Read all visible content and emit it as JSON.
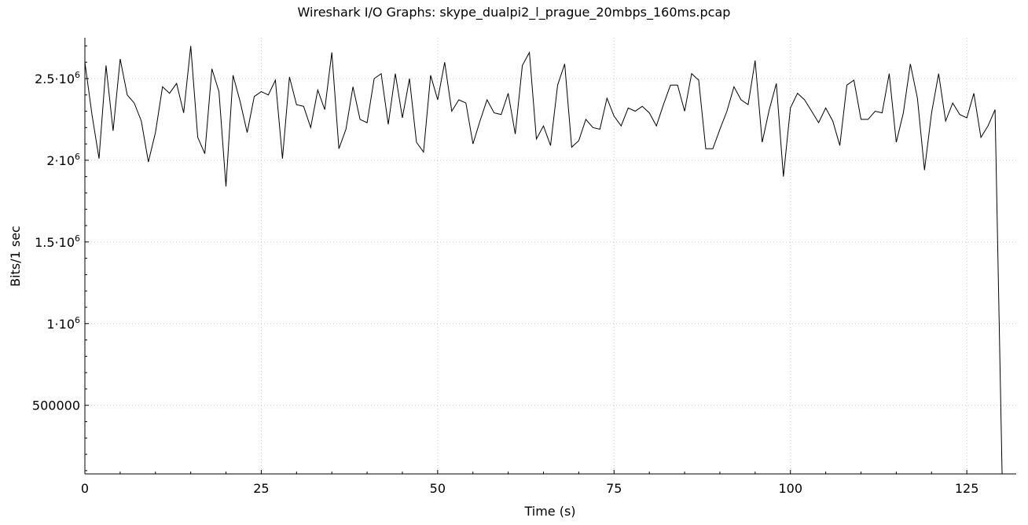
{
  "chart_data": {
    "type": "line",
    "title": "Wireshark I/O Graphs: skype_dualpi2_l_prague_20mbps_160ms.pcap",
    "xlabel": "Time (s)",
    "ylabel": "Bits/1 sec",
    "xlim": [
      0,
      132
    ],
    "ylim": [
      80000,
      2750000
    ],
    "x_ticks": [
      0,
      25,
      50,
      75,
      100,
      125
    ],
    "x_tick_labels": [
      "0",
      "25",
      "50",
      "75",
      "100",
      "125"
    ],
    "y_ticks": [
      500000,
      1000000,
      1500000,
      2000000,
      2500000
    ],
    "y_tick_labels": [
      {
        "base": "500000",
        "exp": ""
      },
      {
        "base": "1·10",
        "exp": "6"
      },
      {
        "base": "1.5·10",
        "exp": "6"
      },
      {
        "base": "2·10",
        "exp": "6"
      },
      {
        "base": "2.5·10",
        "exp": "6"
      }
    ],
    "grid": true,
    "line_color": "#000000",
    "x": [
      0,
      1,
      2,
      3,
      4,
      5,
      6,
      7,
      8,
      9,
      10,
      11,
      12,
      13,
      14,
      15,
      16,
      17,
      18,
      19,
      20,
      21,
      22,
      23,
      24,
      25,
      26,
      27,
      28,
      29,
      30,
      31,
      32,
      33,
      34,
      35,
      36,
      37,
      38,
      39,
      40,
      41,
      42,
      43,
      44,
      45,
      46,
      47,
      48,
      49,
      50,
      51,
      52,
      53,
      54,
      55,
      56,
      57,
      58,
      59,
      60,
      61,
      62,
      63,
      64,
      65,
      66,
      67,
      68,
      69,
      70,
      71,
      72,
      73,
      74,
      75,
      76,
      77,
      78,
      79,
      80,
      81,
      82,
      83,
      84,
      85,
      86,
      87,
      88,
      89,
      90,
      91,
      92,
      93,
      94,
      95,
      96,
      97,
      98,
      99,
      100,
      101,
      102,
      103,
      104,
      105,
      106,
      107,
      108,
      109,
      110,
      111,
      112,
      113,
      114,
      115,
      116,
      117,
      118,
      119,
      120,
      121,
      122,
      123,
      124,
      125,
      126,
      127,
      128,
      129,
      130
    ],
    "values": [
      2600000,
      2280000,
      2010000,
      2580000,
      2180000,
      2620000,
      2400000,
      2350000,
      2240000,
      1990000,
      2170000,
      2450000,
      2410000,
      2470000,
      2290000,
      2700000,
      2140000,
      2040000,
      2560000,
      2420000,
      1840000,
      2520000,
      2360000,
      2170000,
      2390000,
      2420000,
      2400000,
      2490000,
      2010000,
      2510000,
      2340000,
      2330000,
      2200000,
      2430000,
      2310000,
      2660000,
      2070000,
      2190000,
      2450000,
      2250000,
      2230000,
      2500000,
      2530000,
      2220000,
      2530000,
      2260000,
      2500000,
      2110000,
      2050000,
      2520000,
      2370000,
      2600000,
      2300000,
      2370000,
      2350000,
      2100000,
      2240000,
      2370000,
      2290000,
      2280000,
      2410000,
      2160000,
      2580000,
      2660000,
      2130000,
      2210000,
      2090000,
      2460000,
      2590000,
      2080000,
      2120000,
      2250000,
      2200000,
      2190000,
      2380000,
      2270000,
      2210000,
      2320000,
      2300000,
      2330000,
      2290000,
      2210000,
      2340000,
      2460000,
      2460000,
      2300000,
      2530000,
      2490000,
      2070000,
      2070000,
      2190000,
      2300000,
      2450000,
      2370000,
      2340000,
      2610000,
      2110000,
      2310000,
      2470000,
      1900000,
      2320000,
      2410000,
      2370000,
      2300000,
      2230000,
      2320000,
      2240000,
      2090000,
      2460000,
      2490000,
      2250000,
      2250000,
      2300000,
      2290000,
      2530000,
      2110000,
      2290000,
      2590000,
      2380000,
      1940000,
      2290000,
      2530000,
      2240000,
      2350000,
      2280000,
      2260000,
      2410000,
      2140000,
      2210000,
      2310000,
      90000
    ]
  }
}
